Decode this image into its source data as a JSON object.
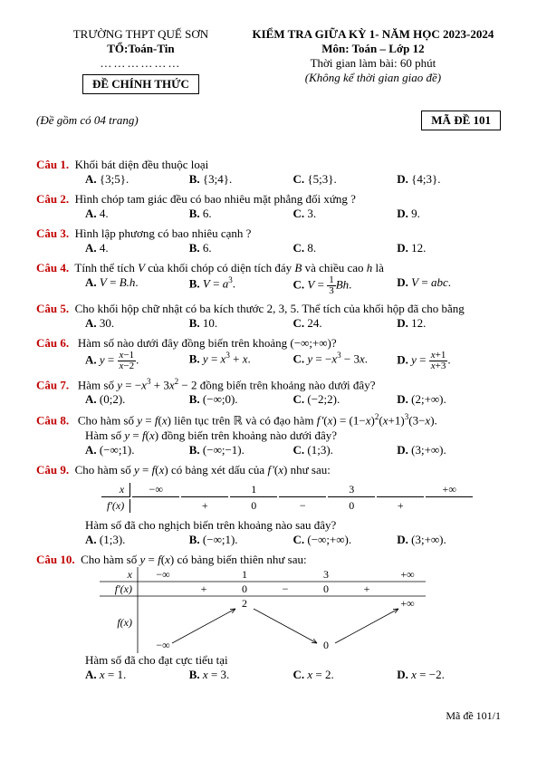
{
  "header": {
    "school": "TRƯỜNG THPT QUẾ SƠN",
    "dept": "TỔ:Toán-Tin",
    "dots": "………………",
    "official": "ĐỀ CHÍNH THỨC",
    "exam_title": "KIỂM TRA GIỮA KỲ 1- NĂM HỌC 2023-2024",
    "subject": "Môn: Toán – Lớp 12",
    "duration": "Thời gian làm bài: 60 phút",
    "note": "(Không kể thời gian giao đề)"
  },
  "pages_row": {
    "left": "(Đề gồm có 04 trang)",
    "right": "MÃ ĐỀ 101"
  },
  "questions": [
    {
      "label": "Câu 1.",
      "text": "Khối bát diện đều thuộc loại",
      "opts": [
        "{3;5}.",
        "{3;4}.",
        "{5;3}.",
        "{4;3}."
      ]
    },
    {
      "label": "Câu 2.",
      "text": "Hình chóp tam giác đều có bao nhiêu mặt phẳng đối xứng ?",
      "opts": [
        "4.",
        "6.",
        "3.",
        "9."
      ]
    },
    {
      "label": "Câu 3.",
      "text": "Hình lập phương có bao nhiêu cạnh ?",
      "opts": [
        "4.",
        "6.",
        "8.",
        "12."
      ]
    },
    {
      "label": "Câu 4.",
      "text_html": "Tính thể tích <i>V</i> của khối chóp có diện tích đáy <i>B</i> và chiều cao <i>h</i> là",
      "opts_html": [
        "<i>V</i> = <i>B.h</i>.",
        "<i>V</i> = <i>a</i><sup>3</sup>.",
        "<i>V</i> = <span class='frac'><span class='n'>1</span><span class='d'>3</span></span><i>Bh</i>.",
        "<i>V</i> = <i>abc</i>."
      ]
    },
    {
      "label": "Câu 5.",
      "text": "Cho khối hộp chữ nhật có ba kích thước 2, 3, 5. Thể tích của khối hộp đã cho bằng",
      "opts": [
        "30.",
        "10.",
        "24.",
        "12."
      ]
    },
    {
      "label": "Câu 6.",
      "text_html": "&nbsp;Hàm số nào dưới đây đồng biến trên khoảng (−∞;+∞)?",
      "opts_html": [
        "<i>y</i> = <span class='frac'><span class='n'><i>x</i>−1</span><span class='d'><i>x</i>−2</span></span>.",
        "<i>y</i> = <i>x</i><sup>3</sup> + <i>x</i>.",
        "<i>y</i> = −<i>x</i><sup>3</sup> − 3<i>x</i>.",
        "<i>y</i> = <span class='frac'><span class='n'><i>x</i>+1</span><span class='d'><i>x</i>+3</span></span>."
      ]
    },
    {
      "label": "Câu 7.",
      "text_html": "&nbsp;Hàm số <i>y</i> = −<i>x</i><sup>3</sup> + 3<i>x</i><sup>2</sup> − 2 đồng biến trên khoảng nào dưới đây?",
      "opts_html": [
        "(0;2).",
        "(−∞;0).",
        "(−2;2).",
        "(2;+∞)."
      ]
    },
    {
      "label": "Câu 8.",
      "text_html": "&nbsp;Cho hàm số <i>y</i> = <i>f</i>(<i>x</i>) liên tục trên ℝ và có đạo hàm <i>f&#8202;'</i>(<i>x</i>) = (1−<i>x</i>)<sup>2</sup>(<i>x</i>+1)<sup>3</sup>(3−<i>x</i>).",
      "text2_html": "Hàm số <i>y</i> = <i>f</i>(<i>x</i>) đồng biến trên khoảng nào dưới đây?",
      "opts_html": [
        "(−∞;1).",
        "(−∞;−1).",
        "(1;3).",
        "(3;+∞)."
      ]
    },
    {
      "label": "Câu 9.",
      "text_html": "Cho hàm số <i>y</i> = <i>f</i>(<i>x</i>) có bảng xét dấu của <i>f&#8202;'</i>(<i>x</i>) như sau:",
      "table": {
        "xrow": [
          "−∞",
          "",
          "1",
          "",
          "3",
          "",
          "+∞"
        ],
        "frow": [
          "",
          "+",
          "0",
          "−",
          "0",
          "+",
          ""
        ],
        "left1": "x",
        "left2": "f'(x)"
      },
      "text2": "Hàm số đã cho nghịch biến trên khoảng nào sau đây?",
      "opts_html": [
        "(1;3).",
        "(−∞;1).",
        "(−∞;+∞).",
        "(3;+∞)."
      ]
    },
    {
      "label": "Câu 10.",
      "text_html": "Cho hàm số <i>y</i> = <i>f</i>(<i>x</i>) có bảng biến thiên như sau:",
      "chart": true,
      "text2": "Hàm số đã cho đạt cực tiểu tại",
      "opts_html": [
        "<i>x</i> = 1.",
        "<i>x</i> = 3.",
        "<i>x</i> = 2.",
        "<i>x</i> = −2."
      ]
    }
  ],
  "chart_data": {
    "xrow": [
      "−∞",
      "1",
      "3",
      "+∞"
    ],
    "signs": [
      "+",
      "0",
      "−",
      "0",
      "+"
    ],
    "row1_label": "x",
    "row2_label": "f'(x)",
    "row3_label": "f(x)",
    "top_vals": [
      "2",
      "+∞"
    ],
    "bot_vals": [
      "−∞",
      "0"
    ]
  },
  "footer": "Mã đề 101/1"
}
